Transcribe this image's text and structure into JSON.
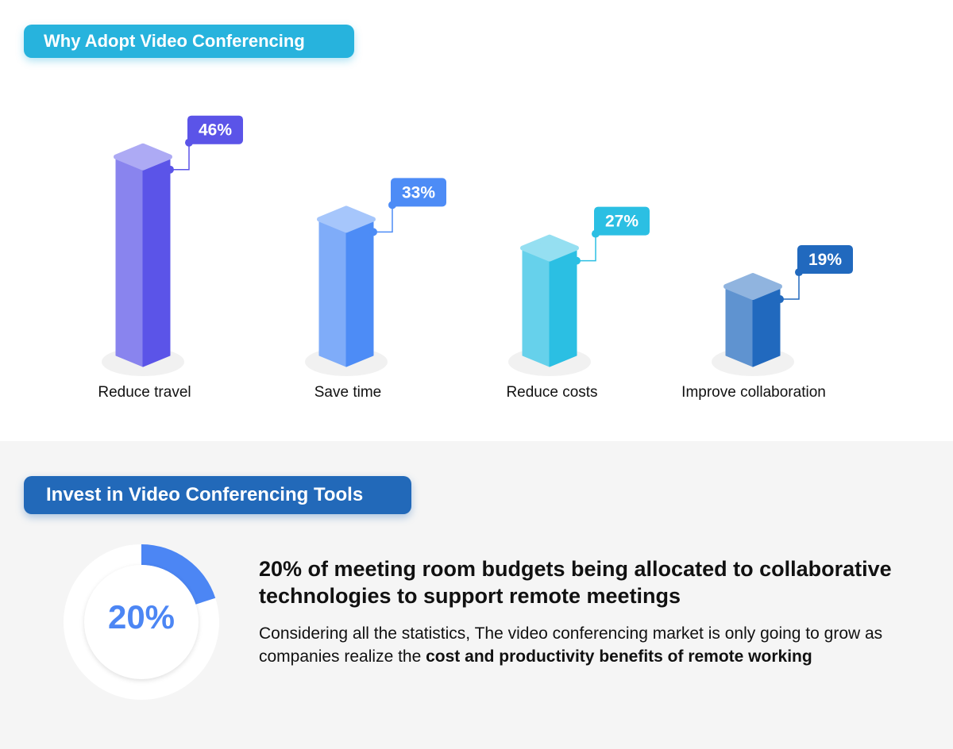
{
  "section1": {
    "title": "Why Adopt Video Conferencing"
  },
  "chart_data": {
    "type": "bar",
    "title": "Why Adopt Video Conferencing",
    "categories": [
      "Reduce travel",
      "Save time",
      "Reduce costs",
      "Improve collaboration"
    ],
    "values": [
      46,
      33,
      27,
      19
    ],
    "value_labels": [
      "46%",
      "33%",
      "27%",
      "19%"
    ],
    "colors": [
      "#5b54e8",
      "#4d8cf6",
      "#2bbfe3",
      "#2169be"
    ],
    "xlabel": "",
    "ylabel": "",
    "ylim": [
      0,
      50
    ],
    "grid": false,
    "legend": "none"
  },
  "section2": {
    "title": "Invest in Video Conferencing Tools",
    "donut": {
      "value": 20,
      "label": "20%",
      "color": "#4c86f4"
    },
    "headline": "20% of meeting room budgets being allocated to collaborative technologies to support remote meetings",
    "body_plain": "Considering all the statistics, The video conferencing market is only going to grow as companies realize the ",
    "body_bold": "cost and productivity benefits of remote working"
  }
}
